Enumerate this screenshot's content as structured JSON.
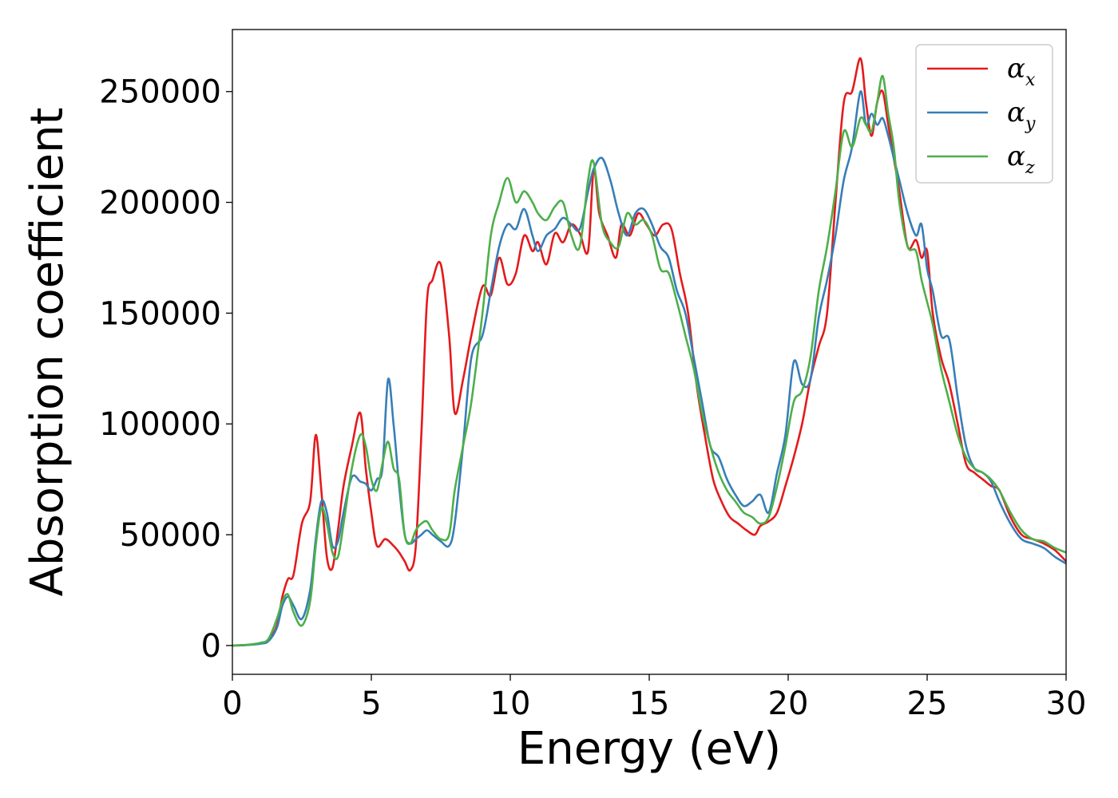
{
  "chart_data": {
    "type": "line",
    "xlabel": "Energy (eV)",
    "ylabel": "Absorption coefficient",
    "xlim": [
      0,
      30
    ],
    "ylim": [
      -13000,
      278000
    ],
    "xticks": [
      0,
      5,
      10,
      15,
      20,
      25,
      30
    ],
    "xtick_labels": [
      "0",
      "5",
      "10",
      "15",
      "20",
      "25",
      "30"
    ],
    "yticks": [
      0,
      50000,
      100000,
      150000,
      200000,
      250000
    ],
    "ytick_labels": [
      "0",
      "50000",
      "100000",
      "150000",
      "200000",
      "250000"
    ],
    "grid": false,
    "legend_position": "top-right",
    "series": [
      {
        "name": "α",
        "subscript": "x",
        "color": "#e41a1c",
        "x": [
          0,
          0.5,
          1,
          1.3,
          1.6,
          1.8,
          2.0,
          2.2,
          2.5,
          2.8,
          3.0,
          3.2,
          3.4,
          3.6,
          3.8,
          4.0,
          4.3,
          4.6,
          4.8,
          5.0,
          5.2,
          5.5,
          5.8,
          6.0,
          6.2,
          6.4,
          6.6,
          6.8,
          7.0,
          7.2,
          7.5,
          7.8,
          8.0,
          8.3,
          8.6,
          9.0,
          9.3,
          9.6,
          9.9,
          10.2,
          10.5,
          10.8,
          11.0,
          11.3,
          11.6,
          11.9,
          12.2,
          12.5,
          12.8,
          13.0,
          13.2,
          13.5,
          13.8,
          14.0,
          14.3,
          14.6,
          14.9,
          15.2,
          15.5,
          15.8,
          16.1,
          16.4,
          16.7,
          17.0,
          17.3,
          17.6,
          17.9,
          18.2,
          18.5,
          18.8,
          19.0,
          19.3,
          19.6,
          19.9,
          20.2,
          20.5,
          20.8,
          21.1,
          21.4,
          21.7,
          22.0,
          22.3,
          22.6,
          22.8,
          23.0,
          23.2,
          23.4,
          23.6,
          23.8,
          24.0,
          24.3,
          24.6,
          24.8,
          25.0,
          25.2,
          25.5,
          25.8,
          26.1,
          26.4,
          26.7,
          27.0,
          27.3,
          27.6,
          28.0,
          28.4,
          28.8,
          29.2,
          29.6,
          30.0
        ],
        "y": [
          0,
          200,
          1000,
          2500,
          9000,
          22000,
          30000,
          32000,
          55000,
          65000,
          95000,
          70000,
          40000,
          35000,
          52000,
          72000,
          90000,
          105000,
          80000,
          60000,
          45000,
          48000,
          45000,
          42000,
          38000,
          34000,
          45000,
          95000,
          155000,
          165000,
          172000,
          140000,
          105000,
          120000,
          140000,
          162000,
          158000,
          175000,
          163000,
          168000,
          185000,
          178000,
          182000,
          172000,
          186000,
          182000,
          190000,
          186000,
          178000,
          215000,
          195000,
          185000,
          175000,
          190000,
          185000,
          195000,
          190000,
          185000,
          190000,
          188000,
          168000,
          150000,
          118000,
          95000,
          75000,
          65000,
          58000,
          55000,
          52000,
          50000,
          54000,
          56000,
          60000,
          72000,
          85000,
          100000,
          120000,
          135000,
          150000,
          200000,
          245000,
          250000,
          265000,
          245000,
          230000,
          245000,
          250000,
          235000,
          220000,
          205000,
          180000,
          183000,
          175000,
          178000,
          150000,
          130000,
          118000,
          100000,
          82000,
          78000,
          75000,
          72000,
          70000,
          58000,
          50000,
          48000,
          46000,
          43000,
          38000
        ]
      },
      {
        "name": "α",
        "subscript": "y",
        "color": "#377eb8",
        "x": [
          0,
          0.5,
          1,
          1.3,
          1.6,
          1.8,
          2.0,
          2.2,
          2.5,
          2.8,
          3.0,
          3.2,
          3.4,
          3.6,
          3.8,
          4.0,
          4.3,
          4.6,
          4.8,
          5.0,
          5.2,
          5.4,
          5.6,
          5.8,
          6.0,
          6.2,
          6.4,
          6.6,
          6.8,
          7.0,
          7.2,
          7.5,
          7.8,
          8.0,
          8.3,
          8.6,
          9.0,
          9.3,
          9.6,
          9.9,
          10.2,
          10.5,
          10.8,
          11.0,
          11.3,
          11.6,
          11.9,
          12.2,
          12.5,
          12.8,
          13.0,
          13.3,
          13.6,
          13.9,
          14.2,
          14.5,
          14.8,
          15.1,
          15.4,
          15.7,
          16.0,
          16.3,
          16.6,
          16.9,
          17.2,
          17.5,
          17.8,
          18.1,
          18.4,
          18.7,
          19.0,
          19.3,
          19.6,
          19.9,
          20.2,
          20.5,
          20.8,
          21.1,
          21.4,
          21.7,
          22.0,
          22.3,
          22.6,
          22.8,
          23.0,
          23.2,
          23.4,
          23.6,
          23.8,
          24.0,
          24.3,
          24.6,
          24.8,
          25.0,
          25.2,
          25.5,
          25.8,
          26.1,
          26.4,
          26.7,
          27.0,
          27.3,
          27.6,
          28.0,
          28.4,
          28.8,
          29.2,
          29.6,
          30.0
        ],
        "y": [
          0,
          200,
          800,
          2000,
          8000,
          18000,
          22000,
          18000,
          12000,
          25000,
          48000,
          65000,
          60000,
          45000,
          47000,
          60000,
          76000,
          74000,
          73000,
          70000,
          75000,
          80000,
          120000,
          100000,
          72000,
          50000,
          46000,
          48000,
          50000,
          52000,
          50000,
          47000,
          45000,
          55000,
          90000,
          130000,
          140000,
          160000,
          180000,
          190000,
          188000,
          197000,
          185000,
          178000,
          185000,
          188000,
          193000,
          190000,
          188000,
          205000,
          215000,
          220000,
          210000,
          195000,
          185000,
          195000,
          197000,
          190000,
          180000,
          175000,
          160000,
          150000,
          130000,
          110000,
          90000,
          85000,
          75000,
          68000,
          63000,
          65000,
          68000,
          60000,
          78000,
          95000,
          128000,
          118000,
          120000,
          148000,
          165000,
          185000,
          210000,
          225000,
          250000,
          235000,
          240000,
          235000,
          238000,
          230000,
          220000,
          210000,
          195000,
          185000,
          190000,
          170000,
          160000,
          140000,
          138000,
          112000,
          90000,
          80000,
          78000,
          74000,
          65000,
          55000,
          48000,
          46000,
          44000,
          40000,
          37000
        ]
      },
      {
        "name": "α",
        "subscript": "z",
        "color": "#4daf4a",
        "x": [
          0,
          0.5,
          1,
          1.3,
          1.6,
          1.8,
          2.0,
          2.2,
          2.5,
          2.8,
          3.0,
          3.2,
          3.4,
          3.6,
          3.8,
          4.0,
          4.3,
          4.6,
          4.8,
          5.0,
          5.2,
          5.4,
          5.6,
          5.8,
          6.0,
          6.2,
          6.4,
          6.6,
          6.8,
          7.0,
          7.2,
          7.5,
          7.8,
          8.0,
          8.3,
          8.6,
          9.0,
          9.3,
          9.6,
          9.9,
          10.2,
          10.5,
          10.8,
          11.0,
          11.3,
          11.6,
          11.9,
          12.2,
          12.5,
          12.8,
          13.0,
          13.3,
          13.6,
          13.9,
          14.2,
          14.5,
          14.8,
          15.1,
          15.4,
          15.7,
          16.0,
          16.3,
          16.6,
          16.9,
          17.2,
          17.5,
          17.8,
          18.1,
          18.4,
          18.7,
          19.0,
          19.3,
          19.6,
          19.9,
          20.2,
          20.5,
          20.8,
          21.1,
          21.4,
          21.7,
          22.0,
          22.3,
          22.6,
          22.8,
          23.0,
          23.2,
          23.4,
          23.6,
          23.8,
          24.0,
          24.3,
          24.6,
          24.8,
          25.0,
          25.2,
          25.5,
          25.8,
          26.1,
          26.4,
          26.7,
          27.0,
          27.3,
          27.6,
          28.0,
          28.4,
          28.8,
          29.2,
          29.6,
          30.0
        ],
        "y": [
          0,
          300,
          1200,
          3000,
          12000,
          20000,
          23000,
          15000,
          9000,
          20000,
          45000,
          62000,
          55000,
          42000,
          40000,
          55000,
          80000,
          95000,
          90000,
          75000,
          70000,
          82000,
          92000,
          80000,
          75000,
          50000,
          46000,
          52000,
          55000,
          56000,
          52000,
          48000,
          50000,
          70000,
          90000,
          110000,
          150000,
          185000,
          200000,
          211000,
          200000,
          205000,
          200000,
          195000,
          192000,
          198000,
          200000,
          185000,
          180000,
          210000,
          218000,
          190000,
          182000,
          180000,
          195000,
          190000,
          192000,
          185000,
          170000,
          168000,
          155000,
          140000,
          125000,
          105000,
          90000,
          78000,
          70000,
          65000,
          60000,
          58000,
          55000,
          58000,
          72000,
          90000,
          110000,
          115000,
          130000,
          160000,
          180000,
          205000,
          232000,
          225000,
          238000,
          235000,
          232000,
          245000,
          257000,
          240000,
          225000,
          200000,
          180000,
          178000,
          165000,
          155000,
          145000,
          125000,
          110000,
          95000,
          85000,
          80000,
          78000,
          75000,
          70000,
          60000,
          52000,
          48000,
          47000,
          44000,
          42000
        ]
      }
    ]
  }
}
